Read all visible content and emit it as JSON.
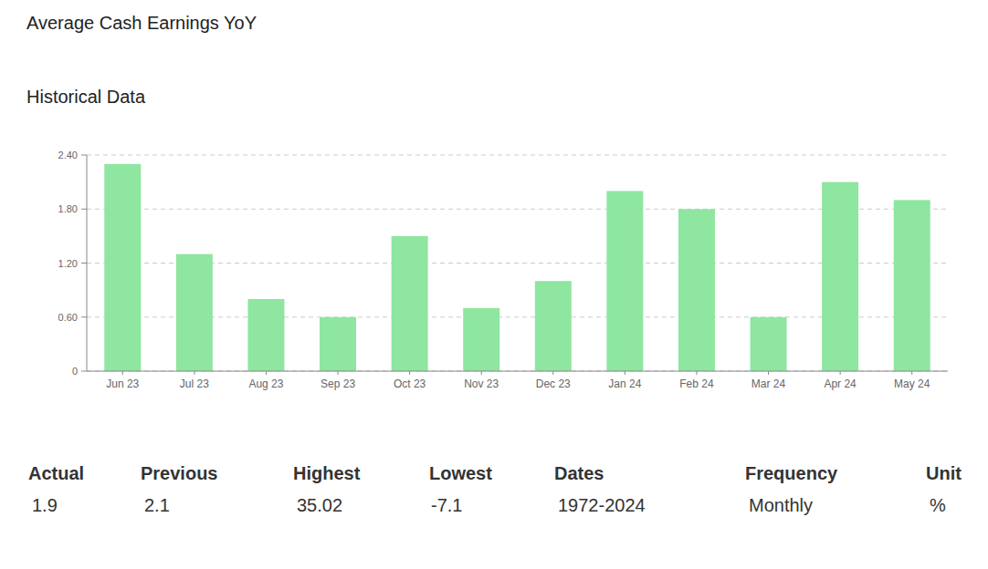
{
  "chart_data": {
    "type": "bar",
    "title": "Average Cash Earnings YoY",
    "subtitle": "Historical Data",
    "categories": [
      "Jun 23",
      "Jul 23",
      "Aug 23",
      "Sep 23",
      "Oct 23",
      "Nov 23",
      "Dec 23",
      "Jan 24",
      "Feb 24",
      "Mar 24",
      "Apr 24",
      "May 24"
    ],
    "values": [
      2.3,
      1.3,
      0.8,
      0.6,
      1.5,
      0.7,
      1.0,
      2.0,
      1.8,
      0.6,
      2.1,
      1.9
    ],
    "color": "#8ee6a0",
    "ylim": [
      0,
      2.4
    ],
    "yticks": [
      0,
      {
        "value": 0.6,
        "label": "0.60"
      },
      {
        "value": 1.2,
        "label": "1.20"
      },
      {
        "value": 1.8,
        "label": "1.80"
      },
      {
        "value": 2.4,
        "label": "2.40"
      }
    ],
    "grid": true
  },
  "stats": [
    {
      "label": "Actual",
      "value": 1.9
    },
    {
      "label": "Previous",
      "value": 2.1
    },
    {
      "label": "Highest",
      "value": 35.02
    },
    {
      "label": "Lowest",
      "value": -7.1
    },
    {
      "label": "Dates",
      "value": "1972-2024"
    },
    {
      "label": "Frequency",
      "value": "Monthly"
    },
    {
      "label": "Unit",
      "value": "%"
    }
  ]
}
